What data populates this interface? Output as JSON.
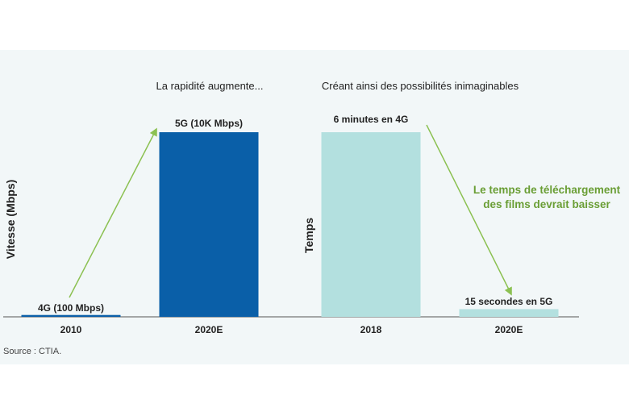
{
  "chart_data": [
    {
      "type": "bar",
      "title": "La rapidité augmente...",
      "ylabel": "Vitesse (Mbps)",
      "categories": [
        "2010",
        "2020E"
      ],
      "values": [
        100,
        10000
      ],
      "value_labels": [
        "4G (100 Mbps)",
        "5G (10K Mbps)"
      ],
      "ylim": [
        0,
        10000
      ],
      "colors": [
        "#0a5fa8",
        "#0a5fa8"
      ]
    },
    {
      "type": "bar",
      "title": "Créant ainsi des possibilités inimaginables",
      "ylabel": "Temps",
      "categories": [
        "2018",
        "2020E"
      ],
      "values": [
        360,
        15
      ],
      "value_labels": [
        "6 minutes en 4G",
        "15 secondes en 5G"
      ],
      "ylim": [
        0,
        360
      ],
      "colors": [
        "#b3e0df",
        "#b3e0df"
      ]
    }
  ],
  "annotation": "Le temps de téléchargement des films devrait baisser",
  "annotation_lines": [
    "Le temps de téléchargement",
    "des films devrait baisser"
  ],
  "source": "Source : CTIA.",
  "colors": {
    "arrow": "#8cc152",
    "annotation": "#6a9e35",
    "panel": "#f2f7f8",
    "axis": "#555555"
  }
}
